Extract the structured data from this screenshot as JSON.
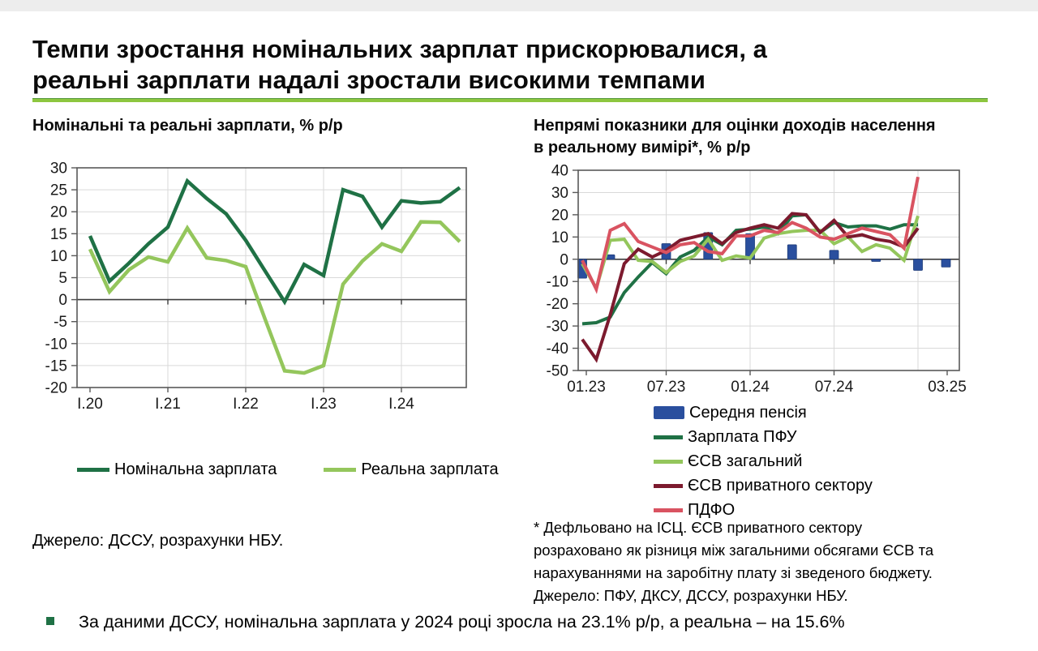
{
  "page": {
    "title": "Темпи зростання номінальних зарплат прискорювалися, а\nреальні зарплати надалі зростали високими темпами",
    "bullet_text": "За даними ДССУ, номінальна зарплата у 2024 році зросла на 23.1% р/р, а реальна – на 15.6%"
  },
  "colors": {
    "dark_green": "#1F7145",
    "light_green": "#94C65C",
    "blue": "#2A4F9E",
    "maroon": "#7C1A2E",
    "red_pink": "#D95361",
    "grid": "#D9D9D9",
    "axis_border": "#595959",
    "zero_line": "#3C3C3C",
    "tick_text": "#1A1A1A",
    "underline_green": "#8DC63F",
    "bullet_green": "#1F7145"
  },
  "chart_data": [
    {
      "type": "line",
      "title": "Номінальні та реальні зарплати, % р/р",
      "xlabel": "",
      "ylabel": "% р/р",
      "ylim": [
        -20,
        30
      ],
      "y_step": 5,
      "grid": true,
      "legend_position": "bottom",
      "y_tick_labels": [
        "30",
        "25",
        "20",
        "15",
        "10",
        "5",
        "0",
        "-5",
        "-10",
        "-15",
        "-20"
      ],
      "x_tick_labels": [
        "I.20",
        "I.21",
        "I.22",
        "I.23",
        "I.24"
      ],
      "categories": [
        "I.20",
        "II.20",
        "III.20",
        "IV.20",
        "I.21",
        "II.21",
        "III.21",
        "IV.21",
        "I.22",
        "II.22",
        "III.22",
        "IV.22",
        "I.23",
        "II.23",
        "III.23",
        "IV.23",
        "I.24",
        "II.24",
        "III.24",
        "IV.24"
      ],
      "series": [
        {
          "name": "Номінальна зарплата",
          "color": "dark_green",
          "values": [
            14.5,
            4.2,
            8.3,
            12.7,
            16.5,
            27,
            23,
            19.5,
            13.5,
            6.5,
            -0.5,
            8,
            5.5,
            25,
            23.5,
            16.5,
            22.5,
            22,
            22.3,
            25.5
          ]
        },
        {
          "name": "Реальна зарплата",
          "color": "light_green",
          "values": [
            11.5,
            1.8,
            6.8,
            9.7,
            8.6,
            16.3,
            9.5,
            8.9,
            7.5,
            -4.5,
            -16.2,
            -16.7,
            -15,
            3.5,
            8.8,
            12.7,
            11,
            17.7,
            17.6,
            13.2
          ]
        }
      ],
      "source": "Джерело: ДССУ, розрахунки НБУ."
    },
    {
      "type": "line+bar",
      "title": "Непрямі показники для оцінки доходів населення\nв реальному вимірі*, % р/р",
      "xlabel": "",
      "ylabel": "% р/р",
      "ylim": [
        -50,
        40
      ],
      "y_step": 10,
      "grid": true,
      "legend_position": "bottom-list",
      "y_tick_labels": [
        "40",
        "30",
        "20",
        "10",
        "0",
        "-10",
        "-20",
        "-30",
        "-40",
        "-50"
      ],
      "x_tick_labels": [
        "01.23",
        "07.23",
        "01.24",
        "07.24",
        "03.25"
      ],
      "axis_month_span": [
        "01.23",
        "03.25"
      ],
      "months": [
        "01.23",
        "02.23",
        "03.23",
        "04.23",
        "05.23",
        "06.23",
        "07.23",
        "08.23",
        "09.23",
        "10.23",
        "11.23",
        "12.23",
        "01.24",
        "02.24",
        "03.24",
        "04.24",
        "05.24",
        "06.24",
        "07.24",
        "08.24",
        "09.24",
        "10.24",
        "11.24",
        "12.24",
        "01.25"
      ],
      "bars": {
        "name": "Середня пенсія",
        "color": "blue",
        "month_labels": [
          "01.23",
          "03.23",
          "07.23",
          "10.23",
          "01.24",
          "04.24",
          "07.24",
          "10.24",
          "01.25",
          "03.25"
        ],
        "month_index": [
          0,
          2,
          6,
          9,
          12,
          15,
          18,
          21,
          24,
          26
        ],
        "values": [
          -8.5,
          2,
          7,
          12,
          11.5,
          6.5,
          4,
          -1,
          -5,
          -3.5
        ]
      },
      "series": [
        {
          "name": "Зарплата ПФУ",
          "color": "dark_green",
          "values": [
            -29,
            -28.5,
            -26,
            -15,
            -8,
            -1.5,
            -6.5,
            1,
            4,
            10,
            6.5,
            13,
            13.5,
            14.5,
            11.5,
            19.5,
            20,
            12,
            16.5,
            14.5,
            15,
            15,
            13.5,
            15.5,
            15.5
          ]
        },
        {
          "name": "ЄСВ загальний",
          "color": "light_green",
          "values": [
            -2,
            -13,
            8.5,
            9,
            -0.5,
            -1,
            -6,
            -1,
            1.5,
            9,
            -0.5,
            1.5,
            0.5,
            9.5,
            11.5,
            12.5,
            13,
            13,
            7,
            10,
            3.5,
            6.5,
            5,
            -0.5,
            19.5
          ]
        },
        {
          "name": "ЄСВ приватного сектору",
          "color": "maroon",
          "values": [
            -36,
            -45,
            -25,
            -2,
            4.5,
            1,
            4,
            8.5,
            10,
            11.5,
            7,
            12,
            14,
            15.5,
            14,
            20.5,
            20,
            12,
            17.5,
            10,
            11,
            9,
            8,
            5.5,
            14
          ]
        },
        {
          "name": "ПДФО",
          "color": "red_pink",
          "values": [
            -0.5,
            -13.5,
            13,
            16,
            8,
            5.5,
            3,
            6.5,
            7.5,
            3.5,
            2.5,
            10.5,
            10.5,
            13,
            12,
            16.5,
            14,
            10,
            9,
            11.5,
            14,
            12.5,
            11,
            5,
            37
          ]
        }
      ],
      "footnote": "* Дефльовано на ІСЦ. ЄСВ приватного сектору\nрозраховано як різниця між загальними обсягами ЄСВ та\nнарахуваннями на заробітну плату зі зведеного бюджету.\nДжерело: ПФУ, ДКСУ, ДССУ, розрахунки НБУ."
    }
  ]
}
